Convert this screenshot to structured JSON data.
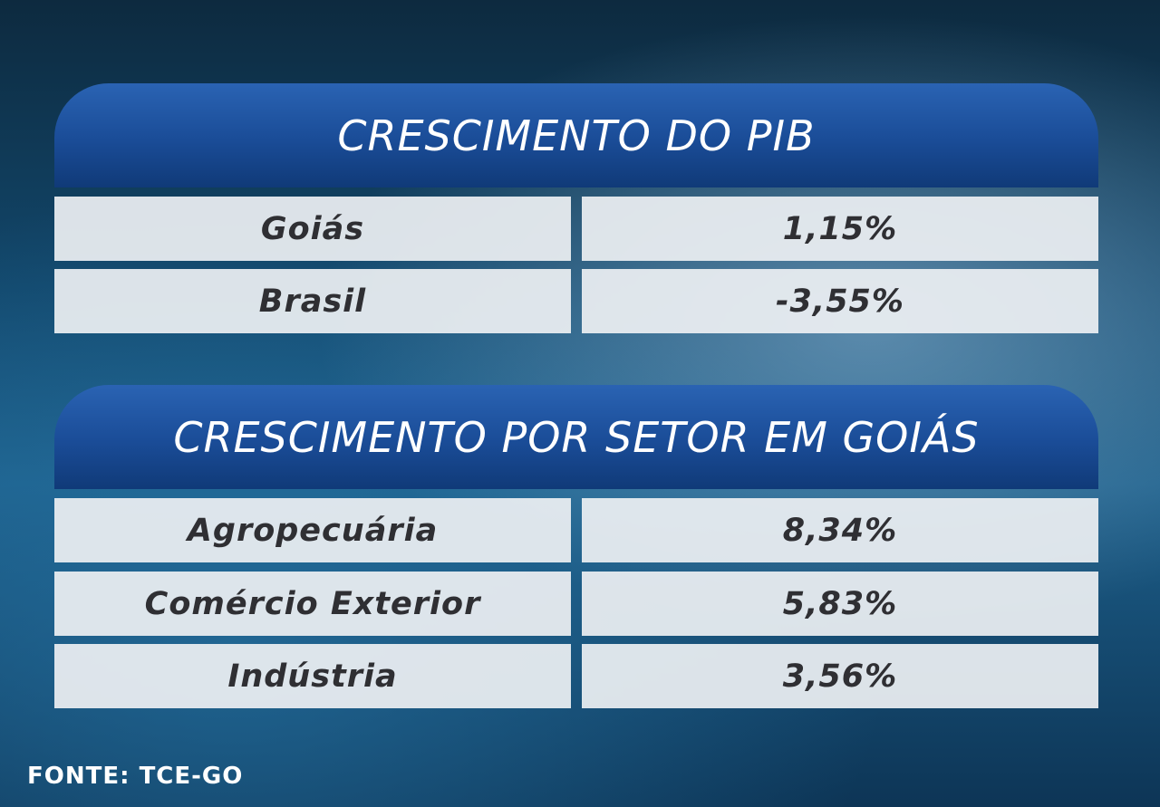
{
  "tables": [
    {
      "title": "CRESCIMENTO DO PIB",
      "rows": [
        [
          "Goiás",
          "1,15%"
        ],
        [
          "Brasil",
          "-3,55%"
        ]
      ]
    },
    {
      "title": "CRESCIMENTO POR SETOR EM GOIÁS",
      "rows": [
        [
          "Agropecuária",
          "8,34%"
        ],
        [
          "Comércio Exterior",
          "5,83%"
        ],
        [
          "Indústria",
          "3,56%"
        ]
      ]
    }
  ],
  "footer": "FONTE: TCE-GO"
}
